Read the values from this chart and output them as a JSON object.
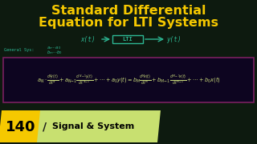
{
  "bg_color": "#0d1a0f",
  "title_line1": "Standard Differential",
  "title_line2": "Equation for LTI Systems",
  "title_color": "#f5c800",
  "block_diagram": {
    "x_t": "x(t)",
    "lti": "LTI",
    "y_t": "y(t)",
    "arrow_color": "#2db894",
    "box_color": "#2db894",
    "text_color": "#2db894"
  },
  "general_color": "#2db894",
  "eq_color": "#c8d87a",
  "eq_box_color": "#7a2060",
  "eq_bg": "#0d0520",
  "badge_bg": "#f5c800",
  "badge_text": "140",
  "badge_text_color": "#000000",
  "banner_bg": "#c8e070",
  "subtitle": "Signal & System",
  "subtitle_color": "#000000"
}
